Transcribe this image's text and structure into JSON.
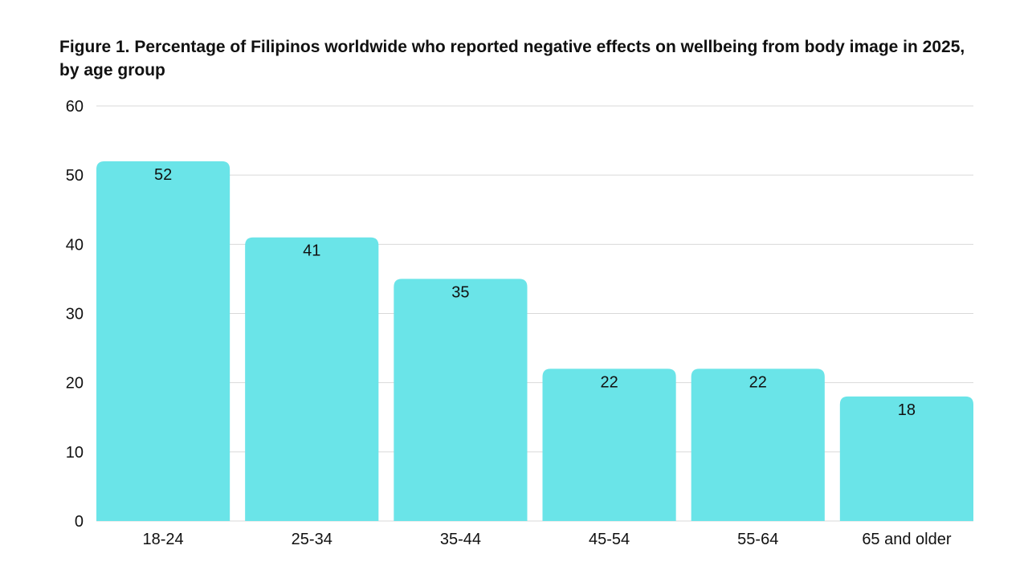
{
  "chart_data": {
    "type": "bar",
    "title": "Figure 1. Percentage of Filipinos worldwide who reported negative effects on wellbeing from body image in 2025, by age group",
    "categories": [
      "18-24",
      "25-34",
      "35-44",
      "45-54",
      "55-64",
      "65 and older"
    ],
    "values": [
      52,
      41,
      35,
      22,
      22,
      18
    ],
    "data_labels": [
      "52",
      "41",
      "35",
      "22",
      "22",
      "18"
    ],
    "ylim": [
      0,
      60
    ],
    "yticks": [
      0,
      10,
      20,
      30,
      40,
      50,
      60
    ],
    "grid": true,
    "legend": "none",
    "bar_color": "#6ae4e8",
    "grid_color": "#d9d9d9"
  }
}
